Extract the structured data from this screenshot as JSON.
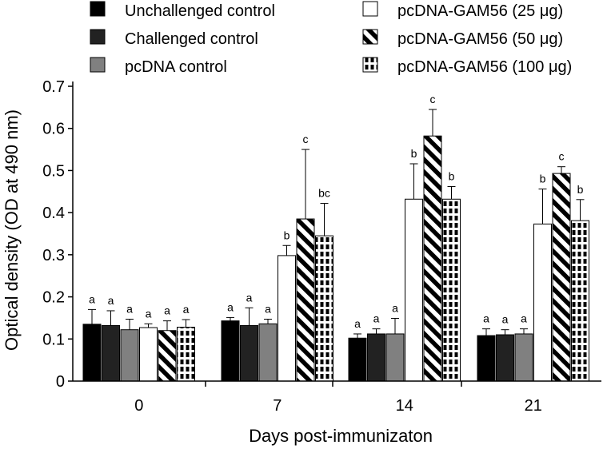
{
  "chart_data": {
    "type": "bar",
    "title": "",
    "xlabel": "Days post-immunizaton",
    "ylabel": "Optical density (OD at 490 nm)",
    "ylim": [
      0,
      0.7
    ],
    "yticks": [
      "0",
      "0.1",
      "0.2",
      "0.3",
      "0.4",
      "0.5",
      "0.6",
      "0.7"
    ],
    "categories": [
      "0",
      "7",
      "14",
      "21"
    ],
    "legend_position": "top",
    "series": [
      {
        "name": "Unchallenged control",
        "pattern": "solid-black",
        "color": "#000000",
        "values": [
          0.135,
          0.143,
          0.102,
          0.108
        ],
        "errors": [
          0.035,
          0.008,
          0.01,
          0.016
        ],
        "labels": [
          "a",
          "a",
          "a",
          "a"
        ]
      },
      {
        "name": "Challenged control",
        "pattern": "solid-dark",
        "color": "#222222",
        "values": [
          0.132,
          0.132,
          0.112,
          0.11
        ],
        "errors": [
          0.035,
          0.042,
          0.012,
          0.012
        ],
        "labels": [
          "a",
          "a",
          "a",
          "a"
        ]
      },
      {
        "name": "pcDNA control",
        "pattern": "solid-gray",
        "color": "#808080",
        "values": [
          0.122,
          0.136,
          0.112,
          0.112
        ],
        "errors": [
          0.025,
          0.011,
          0.037,
          0.012
        ],
        "labels": [
          "a",
          "a",
          "a",
          "a"
        ]
      },
      {
        "name": "pcDNA-GAM56 (25 μg)",
        "pattern": "white",
        "color": "#ffffff",
        "values": [
          0.127,
          0.298,
          0.432,
          0.373
        ],
        "errors": [
          0.009,
          0.024,
          0.084,
          0.083
        ],
        "labels": [
          "a",
          "b",
          "b",
          "b"
        ]
      },
      {
        "name": "pcDNA-GAM56 (50 μg)",
        "pattern": "diagonal-stripes",
        "color": "#000000",
        "values": [
          0.12,
          0.385,
          0.582,
          0.493
        ],
        "errors": [
          0.023,
          0.165,
          0.063,
          0.016
        ],
        "labels": [
          "a",
          "c",
          "c",
          "c"
        ]
      },
      {
        "name": "pcDNA-GAM56 (100 μg)",
        "pattern": "dashed-vertical",
        "color": "#000000",
        "values": [
          0.128,
          0.345,
          0.432,
          0.381
        ],
        "errors": [
          0.018,
          0.077,
          0.03,
          0.05
        ],
        "labels": [
          "a",
          "bc",
          "b",
          "b"
        ]
      }
    ]
  }
}
